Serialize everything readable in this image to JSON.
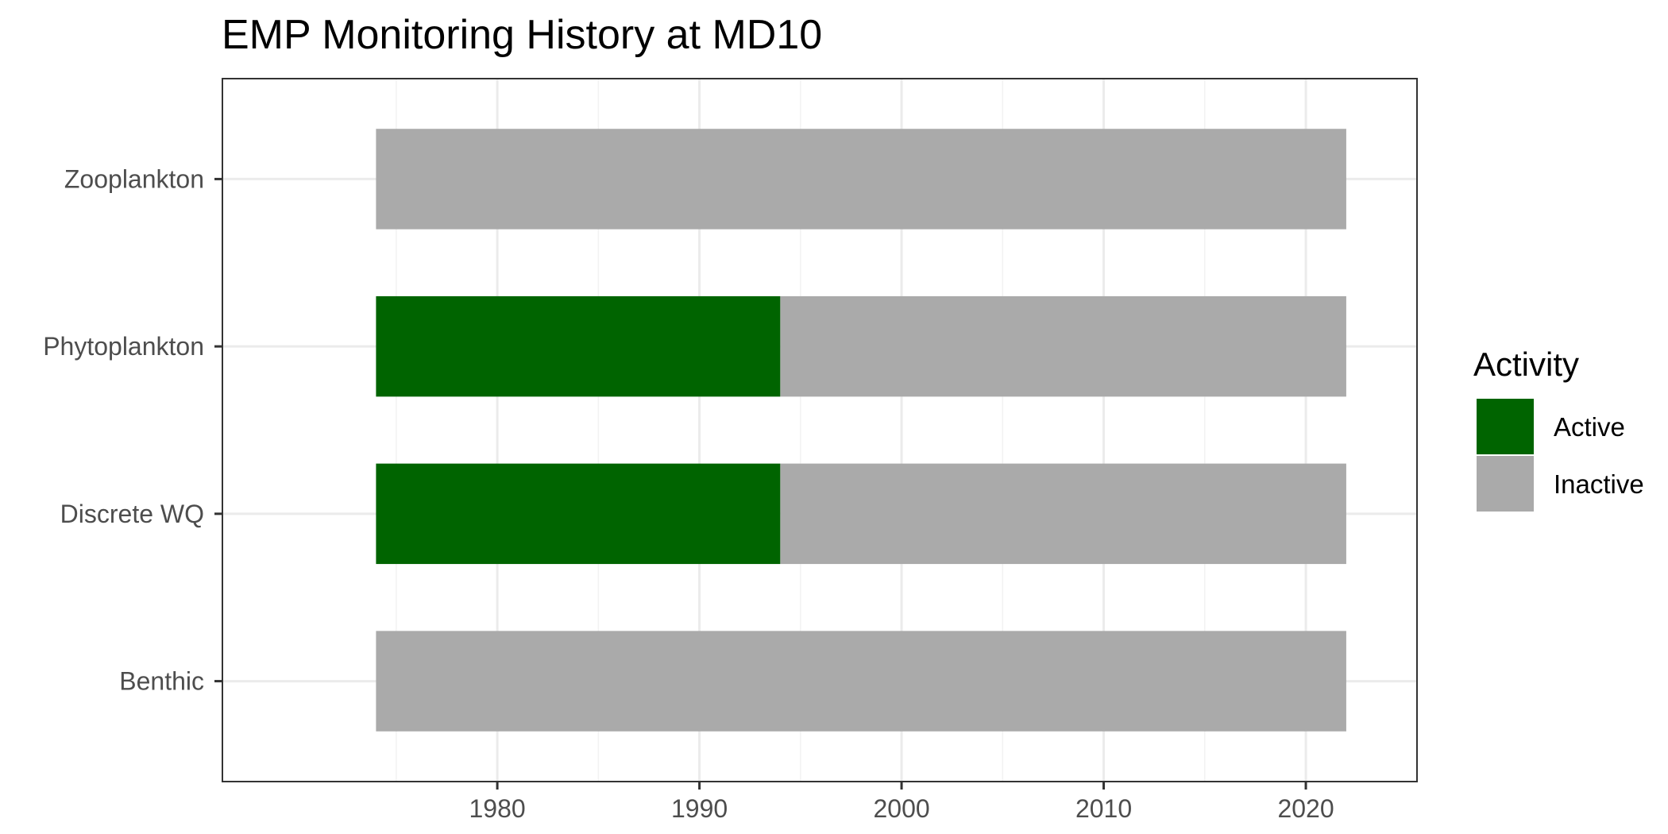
{
  "chart_data": {
    "type": "bar",
    "orientation": "horizontal",
    "stacked": true,
    "title": "EMP Monitoring History at MD10",
    "xlabel": "",
    "ylabel": "",
    "categories": [
      "Benthic",
      "Discrete WQ",
      "Phytoplankton",
      "Zooplankton"
    ],
    "xlim": [
      1966.4,
      2025.5
    ],
    "xticks": [
      1980,
      1990,
      2000,
      2010,
      2020
    ],
    "xtick_labels": [
      "1980",
      "1990",
      "2000",
      "2010",
      "2020"
    ],
    "grid": true,
    "legend": {
      "title": "Activity",
      "position": "right",
      "entries": [
        {
          "label": "Active",
          "color": "#006400"
        },
        {
          "label": "Inactive",
          "color": "#aaaaaa"
        }
      ]
    },
    "segments": [
      {
        "category": "Benthic",
        "activity": "Inactive",
        "start": 1974,
        "end": 2022
      },
      {
        "category": "Discrete WQ",
        "activity": "Active",
        "start": 1974,
        "end": 1994
      },
      {
        "category": "Discrete WQ",
        "activity": "Inactive",
        "start": 1994,
        "end": 2022
      },
      {
        "category": "Phytoplankton",
        "activity": "Active",
        "start": 1974,
        "end": 1994
      },
      {
        "category": "Phytoplankton",
        "activity": "Inactive",
        "start": 1994,
        "end": 2022
      },
      {
        "category": "Zooplankton",
        "activity": "Inactive",
        "start": 1974,
        "end": 2022
      }
    ]
  }
}
